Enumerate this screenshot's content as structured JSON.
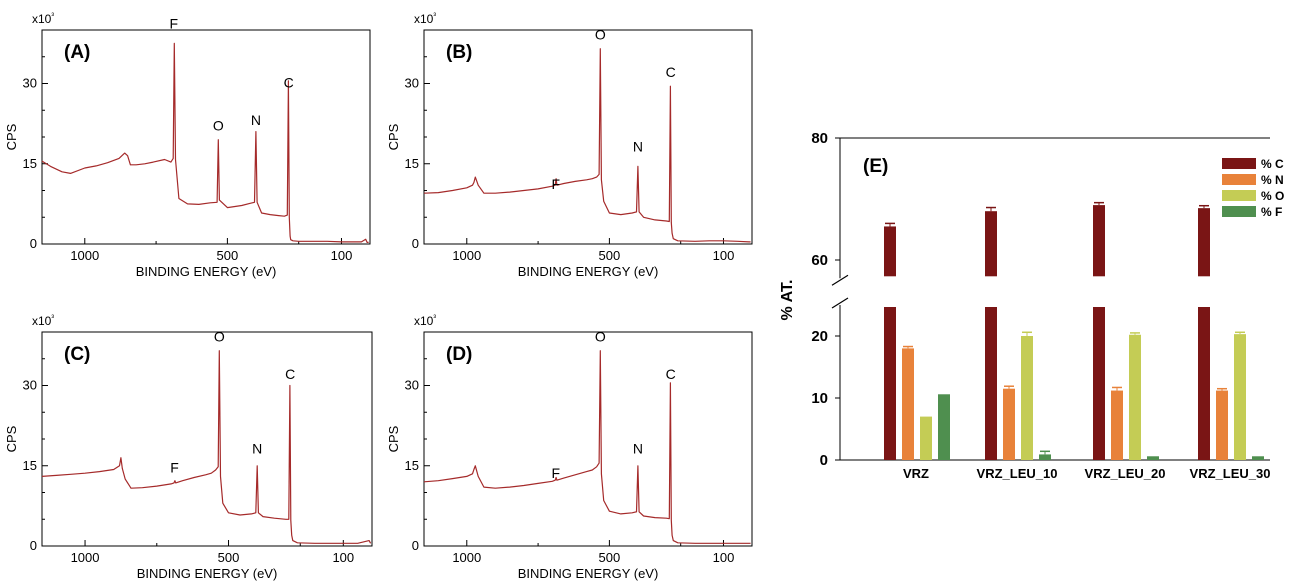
{
  "figure": {
    "panel_labels": [
      "(A)",
      "(B)",
      "(C)",
      "(D)",
      "(E)"
    ]
  },
  "chart_data": [
    {
      "type": "line",
      "panel": "(A)",
      "xlabel": "BINDING ENERGY (eV)",
      "ylabel": "CPS",
      "y_multiplier": "x10³",
      "x_ticks": [
        1000,
        500,
        100
      ],
      "y_ticks": [
        0,
        15,
        30
      ],
      "xlim": [
        1150,
        0
      ],
      "ylim": [
        0,
        40
      ],
      "x_reversed": true,
      "peak_labels": [
        {
          "text": "F",
          "x": 688,
          "y": 39.5
        },
        {
          "text": "O",
          "x": 532,
          "y": 20.5
        },
        {
          "text": "N",
          "x": 400,
          "y": 21.5
        },
        {
          "text": "C",
          "x": 285,
          "y": 28.5
        }
      ],
      "series": [
        {
          "color": "#a52a2a",
          "x": [
            1150,
            1120,
            1080,
            1050,
            1000,
            960,
            920,
            880,
            860,
            850,
            840,
            820,
            790,
            760,
            720,
            698,
            690,
            686,
            682,
            670,
            640,
            600,
            560,
            536,
            532,
            528,
            500,
            450,
            420,
            405,
            400,
            396,
            380,
            350,
            320,
            300,
            290,
            286,
            283,
            280,
            278,
            270,
            250,
            200,
            150,
            100,
            60,
            30,
            15,
            10,
            5
          ],
          "y": [
            15.5,
            14.5,
            13.5,
            13.2,
            14.2,
            14.6,
            15.2,
            16.0,
            17.0,
            16.5,
            14.8,
            14.8,
            15.0,
            15.3,
            15.8,
            15.3,
            16.0,
            37.5,
            15.8,
            8.5,
            7.5,
            7.4,
            7.7,
            7.8,
            19.5,
            8.2,
            6.8,
            7.2,
            7.6,
            7.8,
            21.0,
            7.8,
            5.8,
            5.5,
            5.3,
            5.2,
            5.4,
            30.5,
            5.0,
            1.5,
            0.8,
            0.6,
            0.5,
            0.5,
            0.5,
            0.4,
            0.4,
            0.4,
            0.9,
            0.3,
            0.3
          ]
        }
      ]
    },
    {
      "type": "line",
      "panel": "(B)",
      "xlabel": "BINDING ENERGY (eV)",
      "ylabel": "CPS",
      "y_multiplier": "x10³",
      "x_ticks": [
        1000,
        500,
        100
      ],
      "y_ticks": [
        0,
        15,
        30
      ],
      "xlim": [
        1150,
        0
      ],
      "ylim": [
        0,
        40
      ],
      "x_reversed": true,
      "peak_labels": [
        {
          "text": "O",
          "x": 532,
          "y": 37.5
        },
        {
          "text": "F",
          "x": 688,
          "y": 9.5
        },
        {
          "text": "N",
          "x": 400,
          "y": 16.5
        },
        {
          "text": "C",
          "x": 285,
          "y": 30.5
        }
      ],
      "series": [
        {
          "color": "#a52a2a",
          "x": [
            1150,
            1100,
            1050,
            1000,
            980,
            975,
            970,
            960,
            940,
            900,
            850,
            800,
            750,
            700,
            690,
            687,
            684,
            660,
            620,
            580,
            560,
            545,
            536,
            532,
            528,
            520,
            500,
            460,
            420,
            405,
            400,
            396,
            380,
            340,
            300,
            290,
            286,
            283,
            280,
            276,
            260,
            200,
            150,
            100,
            50,
            10,
            5
          ],
          "y": [
            9.5,
            9.6,
            10.0,
            10.5,
            11.0,
            11.5,
            12.5,
            11.0,
            9.5,
            9.5,
            9.7,
            10.0,
            10.3,
            10.8,
            11.0,
            12.2,
            11.0,
            11.3,
            11.7,
            12.0,
            12.2,
            12.5,
            13.0,
            36.5,
            12.0,
            8.0,
            5.8,
            5.5,
            5.8,
            6.0,
            14.5,
            6.0,
            5.0,
            4.5,
            4.3,
            4.2,
            29.5,
            4.0,
            2.0,
            1.0,
            0.6,
            0.5,
            0.6,
            0.6,
            0.5,
            0.4,
            0.4
          ]
        }
      ]
    },
    {
      "type": "line",
      "panel": "(C)",
      "xlabel": "BINDING ENERGY (eV)",
      "ylabel": "CPS",
      "y_multiplier": "x10³",
      "x_ticks": [
        1000,
        500,
        100
      ],
      "y_ticks": [
        0,
        15,
        30
      ],
      "xlim": [
        1150,
        0
      ],
      "ylim": [
        0,
        40
      ],
      "x_reversed": true,
      "peak_labels": [
        {
          "text": "O",
          "x": 532,
          "y": 37.5
        },
        {
          "text": "F",
          "x": 688,
          "y": 13.0
        },
        {
          "text": "N",
          "x": 400,
          "y": 16.5
        },
        {
          "text": "C",
          "x": 285,
          "y": 30.5
        }
      ],
      "series": [
        {
          "color": "#a52a2a",
          "x": [
            1150,
            1100,
            1050,
            1000,
            950,
            900,
            880,
            875,
            870,
            860,
            840,
            800,
            750,
            700,
            690,
            687,
            684,
            660,
            620,
            580,
            560,
            545,
            536,
            532,
            528,
            520,
            500,
            460,
            420,
            405,
            400,
            396,
            380,
            340,
            300,
            290,
            286,
            283,
            280,
            276,
            260,
            200,
            150,
            100,
            50,
            10,
            5
          ],
          "y": [
            13.0,
            13.2,
            13.4,
            13.6,
            13.9,
            14.3,
            15.0,
            16.5,
            14.5,
            12.5,
            10.8,
            10.9,
            11.2,
            11.6,
            11.8,
            12.2,
            11.8,
            12.2,
            12.8,
            13.3,
            13.6,
            14.2,
            14.8,
            36.5,
            13.0,
            8.0,
            6.2,
            5.8,
            6.0,
            6.2,
            15.0,
            6.2,
            5.5,
            5.2,
            5.0,
            5.0,
            30.0,
            4.8,
            2.0,
            1.0,
            0.6,
            0.5,
            0.5,
            0.5,
            0.5,
            1.0,
            0.5
          ]
        }
      ]
    },
    {
      "type": "line",
      "panel": "(D)",
      "xlabel": "BINDING ENERGY (eV)",
      "ylabel": "CPS",
      "y_multiplier": "x10³",
      "x_ticks": [
        1000,
        500,
        100
      ],
      "y_ticks": [
        0,
        15,
        30
      ],
      "xlim": [
        1150,
        0
      ],
      "ylim": [
        0,
        40
      ],
      "x_reversed": true,
      "peak_labels": [
        {
          "text": "O",
          "x": 532,
          "y": 37.5
        },
        {
          "text": "F",
          "x": 688,
          "y": 12.0
        },
        {
          "text": "N",
          "x": 400,
          "y": 16.5
        },
        {
          "text": "C",
          "x": 285,
          "y": 30.5
        }
      ],
      "series": [
        {
          "color": "#a52a2a",
          "x": [
            1150,
            1100,
            1050,
            1000,
            980,
            975,
            970,
            960,
            940,
            900,
            850,
            800,
            750,
            700,
            690,
            687,
            684,
            660,
            620,
            580,
            560,
            545,
            536,
            532,
            528,
            520,
            500,
            460,
            420,
            405,
            400,
            396,
            380,
            340,
            300,
            290,
            286,
            283,
            280,
            276,
            260,
            200,
            150,
            100,
            50,
            10,
            5
          ],
          "y": [
            12.0,
            12.2,
            12.6,
            13.0,
            13.5,
            14.3,
            15.0,
            13.0,
            11.0,
            10.8,
            11.0,
            11.3,
            11.7,
            12.1,
            12.3,
            12.8,
            12.3,
            12.7,
            13.3,
            13.9,
            14.2,
            14.8,
            15.5,
            36.5,
            13.5,
            8.5,
            6.5,
            6.0,
            6.2,
            6.4,
            15.0,
            6.4,
            5.6,
            5.3,
            5.2,
            5.1,
            30.5,
            4.8,
            2.0,
            1.0,
            0.6,
            0.5,
            0.5,
            0.5,
            0.5,
            0.5,
            0.5
          ]
        }
      ]
    },
    {
      "type": "bar",
      "panel": "(E)",
      "ylabel": "% AT.",
      "categories": [
        "VRZ",
        "VRZ_LEU_10",
        "VRZ_LEU_20",
        "VRZ_LEU_30"
      ],
      "axis_break": true,
      "lower_range": [
        0,
        25
      ],
      "upper_range": [
        57,
        80
      ],
      "y_ticks": [
        0,
        10,
        20,
        60,
        80
      ],
      "legend_position": "top-right",
      "series": [
        {
          "name": "% C",
          "color": "#7a1515",
          "values": [
            65.5,
            68.0,
            69.0,
            68.5
          ],
          "errors": [
            0.5,
            0.6,
            0.4,
            0.4
          ]
        },
        {
          "name": "% N",
          "color": "#e8823a",
          "values": [
            18.0,
            11.5,
            11.2,
            11.2
          ],
          "errors": [
            0.3,
            0.4,
            0.5,
            0.3
          ]
        },
        {
          "name": "% O",
          "color": "#c4cc55",
          "values": [
            7.0,
            20.0,
            20.2,
            20.3
          ],
          "errors": [
            0.0,
            0.6,
            0.3,
            0.3
          ]
        },
        {
          "name": "% F",
          "color": "#4f8f4f",
          "values": [
            10.6,
            0.9,
            0.6,
            0.6
          ],
          "errors": [
            0.0,
            0.5,
            0.0,
            0.0
          ]
        }
      ]
    }
  ]
}
